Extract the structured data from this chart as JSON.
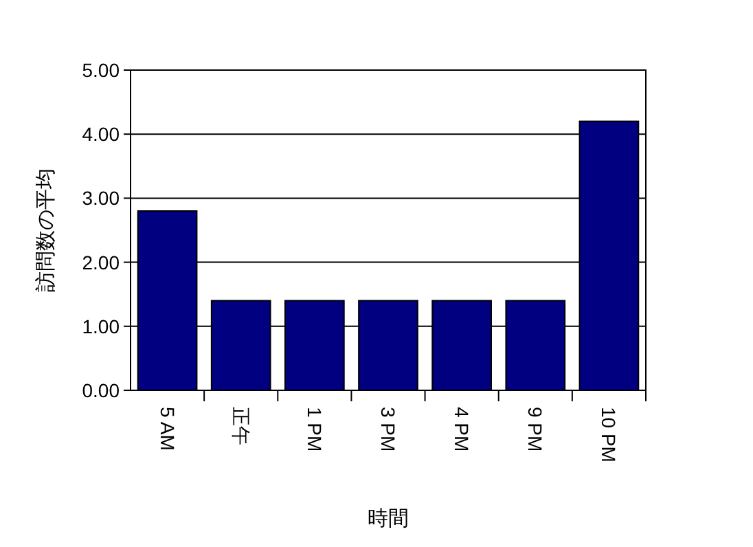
{
  "chart_data": {
    "type": "bar",
    "xlabel": "時間",
    "ylabel": "訪問数の平均",
    "categories": [
      "5 AM",
      "正午",
      "1 PM",
      "3 PM",
      "4 PM",
      "9 PM",
      "10 PM"
    ],
    "values": [
      2.8,
      1.4,
      1.4,
      1.4,
      1.4,
      1.4,
      4.2
    ],
    "color": "#000080",
    "ylim": [
      0,
      5
    ],
    "yticks": [
      {
        "value": 0,
        "label": "0.00"
      },
      {
        "value": 1,
        "label": "1.00"
      },
      {
        "value": 2,
        "label": "2.00"
      },
      {
        "value": 3,
        "label": "3.00"
      },
      {
        "value": 4,
        "label": "4.00"
      },
      {
        "value": 5,
        "label": "5.00"
      }
    ],
    "grid": "y"
  }
}
